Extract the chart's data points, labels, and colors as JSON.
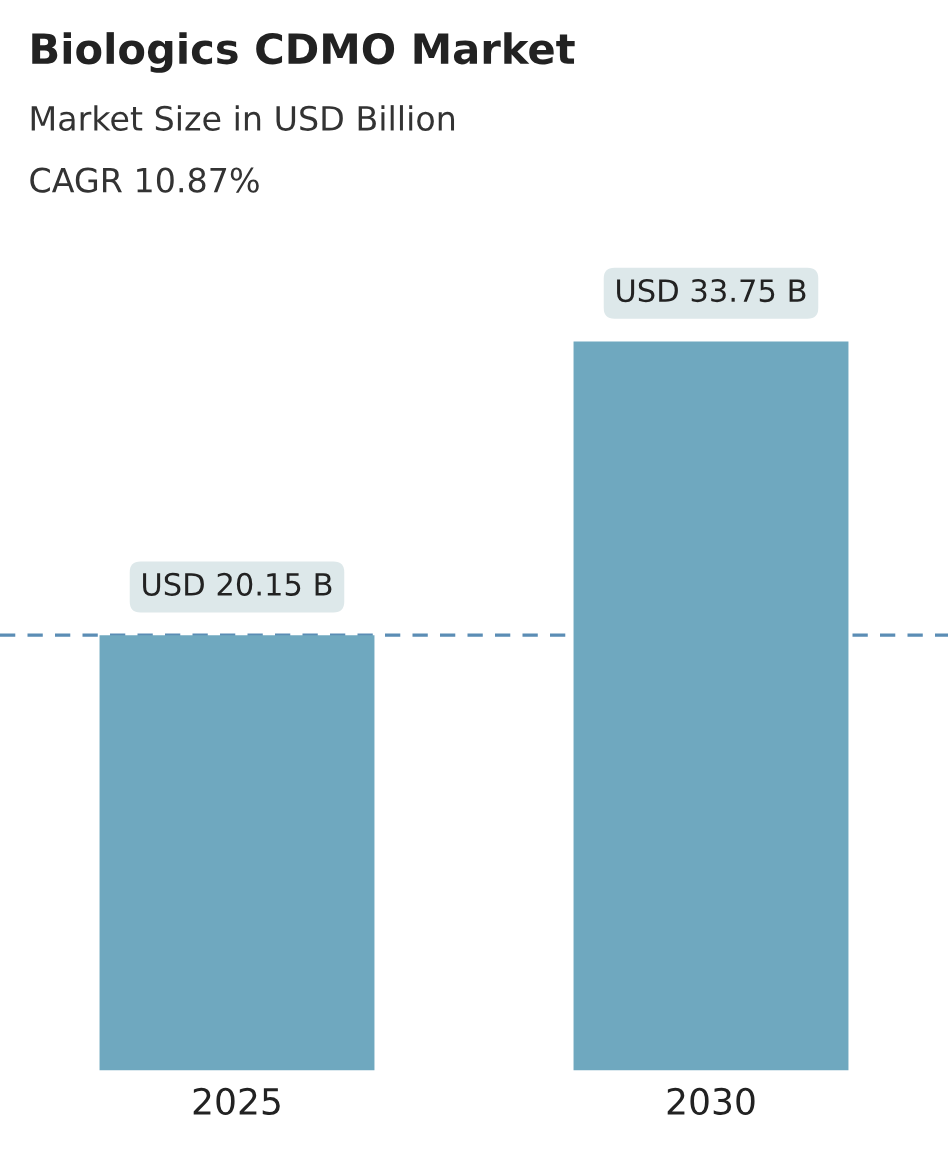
{
  "chart_data": {
    "type": "bar",
    "title": "Biologics CDMO Market",
    "subtitle": "Market Size in USD Billion",
    "annotations": [
      "CAGR 10.87%"
    ],
    "categories": [
      "2025",
      "2030"
    ],
    "values": [
      20.15,
      33.75
    ],
    "value_labels": [
      "USD 20.15 B",
      "USD 33.75 B"
    ],
    "color": "#6fa8bf",
    "ref_lines": [
      {
        "axis": "y",
        "value": 20.15,
        "color": "#5b8db5",
        "line_style": "dashed"
      }
    ],
    "grid": false,
    "legend": false
  }
}
